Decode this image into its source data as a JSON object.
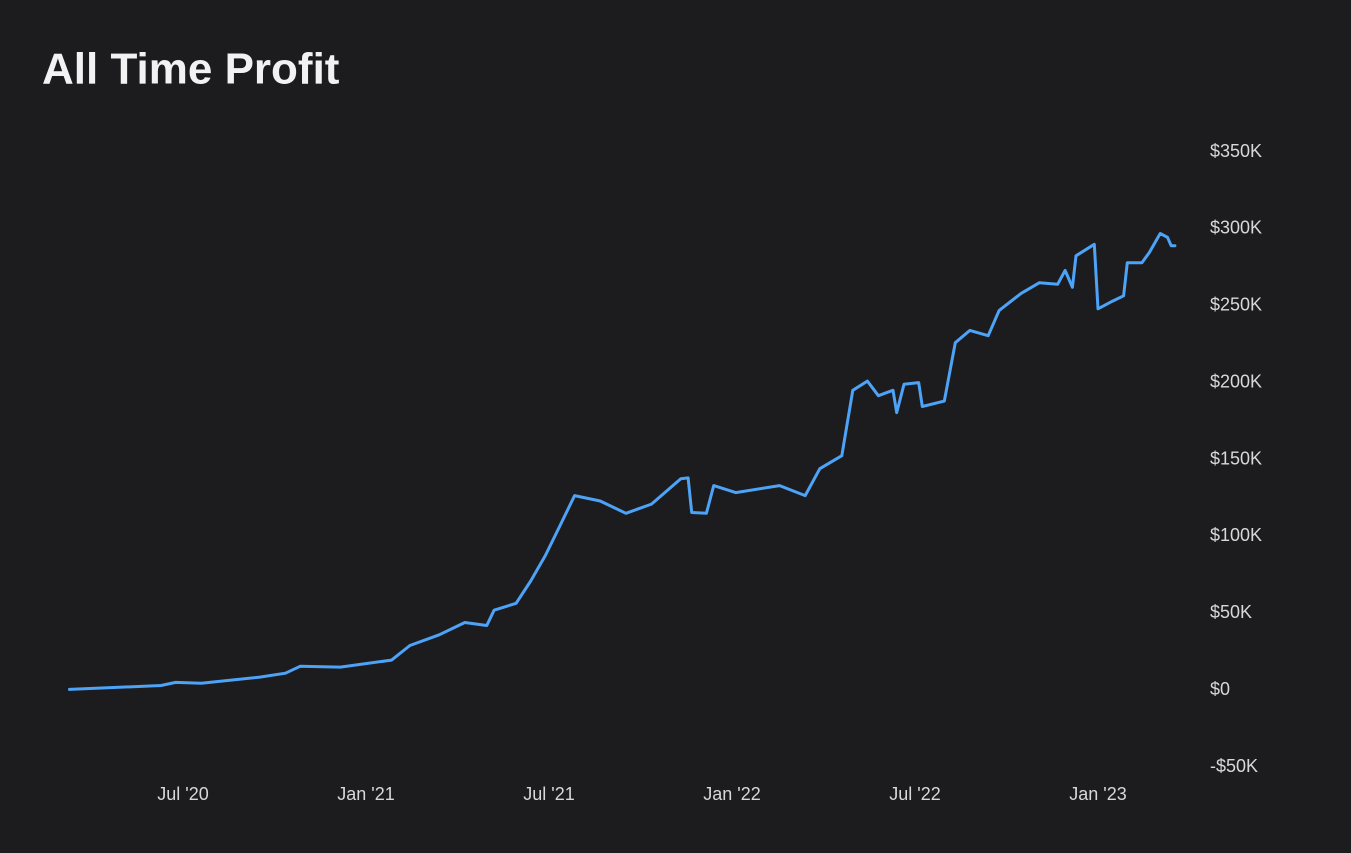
{
  "chart_data": {
    "type": "line",
    "title": "All Time Profit",
    "x": [
      2020.19,
      2020.44,
      2020.48,
      2020.55,
      2020.71,
      2020.78,
      2020.82,
      2020.93,
      2021.07,
      2021.12,
      2021.2,
      2021.27,
      2021.33,
      2021.35,
      2021.41,
      2021.45,
      2021.49,
      2021.53,
      2021.57,
      2021.64,
      2021.71,
      2021.78,
      2021.86,
      2021.88,
      2021.89,
      2021.93,
      2021.95,
      2022.01,
      2022.13,
      2022.2,
      2022.24,
      2022.3,
      2022.33,
      2022.37,
      2022.4,
      2022.44,
      2022.45,
      2022.47,
      2022.51,
      2022.52,
      2022.58,
      2022.61,
      2022.65,
      2022.7,
      2022.72,
      2022.73,
      2022.79,
      2022.84,
      2022.89,
      2022.91,
      2022.93,
      2022.94,
      2022.99,
      2023.0,
      2023.04,
      2023.07,
      2023.08,
      2023.12,
      2023.14,
      2023.17,
      2023.19,
      2023.2,
      2023.21
    ],
    "series": [
      {
        "name": "Profit",
        "color": "#4da3f7",
        "values": [
          500,
          3000,
          5000,
          4500,
          8500,
          11000,
          15500,
          15000,
          19500,
          29000,
          36000,
          44000,
          42000,
          52000,
          56500,
          71000,
          87500,
          107000,
          126500,
          123000,
          115000,
          121000,
          137500,
          138000,
          115500,
          115000,
          133000,
          128500,
          133000,
          126500,
          144000,
          152500,
          195000,
          201000,
          191500,
          195000,
          180500,
          199000,
          200000,
          184500,
          188000,
          226000,
          234000,
          230500,
          241500,
          247000,
          258000,
          265000,
          264000,
          273000,
          262000,
          282500,
          290000,
          248000,
          253000,
          256500,
          278000,
          278000,
          284500,
          297000,
          294500,
          289000,
          289000
        ]
      }
    ],
    "xlim": [
      2020.1,
      2023.3
    ],
    "xticks": [
      {
        "value": 2020.5,
        "label": "Jul '20"
      },
      {
        "value": 2021.0,
        "label": "Jan '21"
      },
      {
        "value": 2021.5,
        "label": "Jul '21"
      },
      {
        "value": 2022.0,
        "label": "Jan '22"
      },
      {
        "value": 2022.5,
        "label": "Jul '22"
      },
      {
        "value": 2023.0,
        "label": "Jan '23"
      }
    ],
    "ylim": [
      -50000,
      350000
    ],
    "yticks": [
      {
        "value": -50000,
        "label": "-$50K"
      },
      {
        "value": 0,
        "label": "$0"
      },
      {
        "value": 50000,
        "label": "$50K"
      },
      {
        "value": 100000,
        "label": "$100K"
      },
      {
        "value": 150000,
        "label": "$150K"
      },
      {
        "value": 200000,
        "label": "$200K"
      },
      {
        "value": 250000,
        "label": "$250K"
      },
      {
        "value": 300000,
        "label": "$300K"
      },
      {
        "value": 350000,
        "label": "$350K"
      }
    ],
    "grid": false
  }
}
